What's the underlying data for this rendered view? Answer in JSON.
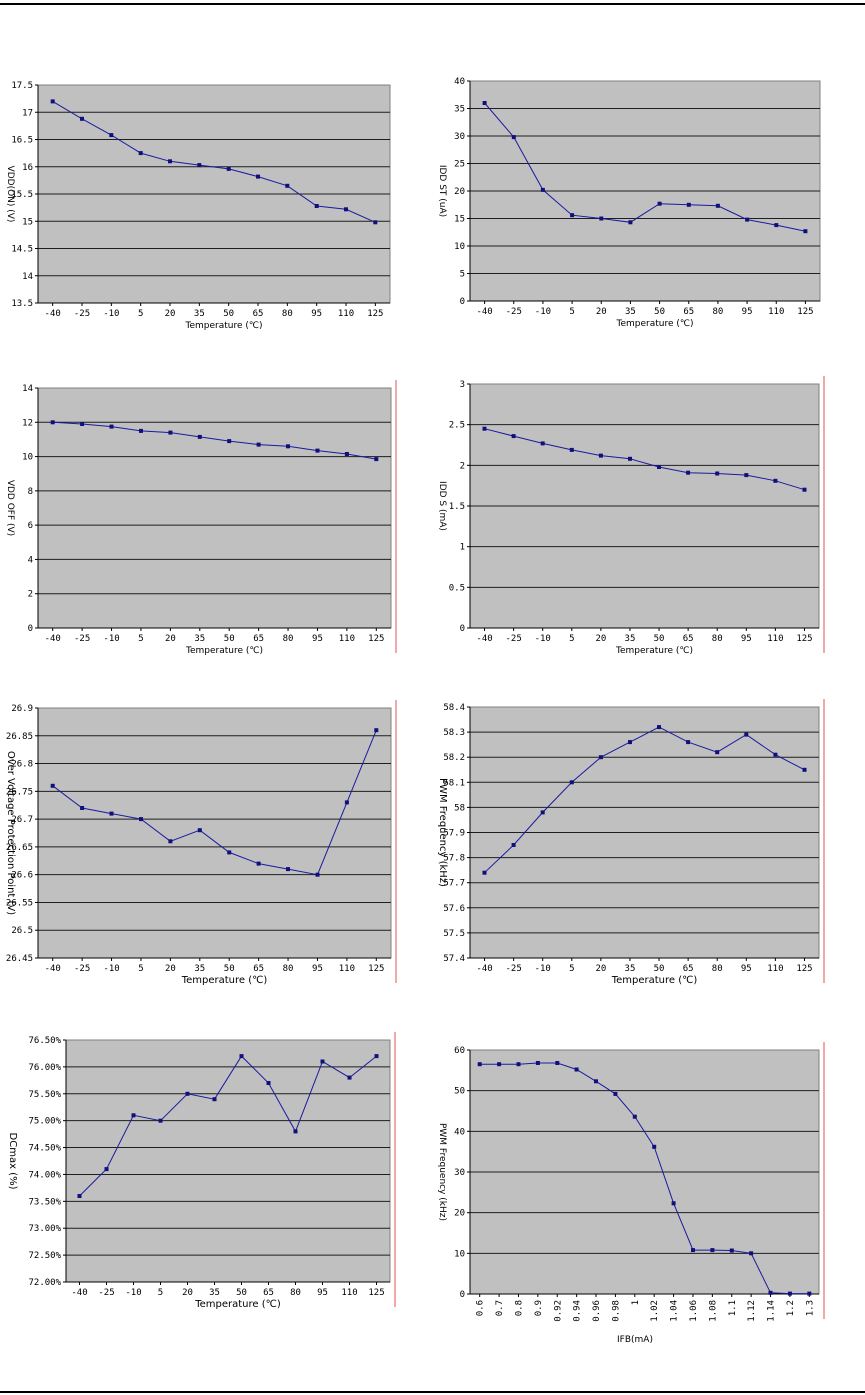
{
  "chart_data": [
    {
      "type": "line",
      "ylabel": "VDD(ON) (V)",
      "xlabel": "Temperature (℃)",
      "categories": [
        "-40",
        "-25",
        "-10",
        "5",
        "20",
        "35",
        "50",
        "65",
        "80",
        "95",
        "110",
        "125"
      ],
      "ylim": [
        13.5,
        17.5
      ],
      "yticks": [
        "13.5",
        "14",
        "14.5",
        "15",
        "15.5",
        "16",
        "16.5",
        "17",
        "17.5"
      ],
      "series": [
        {
          "values": [
            17.2,
            16.88,
            16.58,
            16.25,
            16.1,
            16.03,
            15.96,
            15.82,
            15.65,
            15.28,
            15.22,
            14.98
          ]
        }
      ],
      "grid": true
    },
    {
      "type": "line",
      "ylabel": "IDD ST (uA)",
      "xlabel": "Temperature (℃)",
      "categories": [
        "-40",
        "-25",
        "-10",
        "5",
        "20",
        "35",
        "50",
        "65",
        "80",
        "95",
        "110",
        "125"
      ],
      "ylim": [
        0,
        40
      ],
      "yticks": [
        "0",
        "5",
        "10",
        "15",
        "20",
        "25",
        "30",
        "35",
        "40"
      ],
      "series": [
        {
          "values": [
            36,
            29.8,
            20.2,
            15.6,
            15,
            14.3,
            17.7,
            17.5,
            17.3,
            14.8,
            13.8,
            12.7
          ]
        }
      ],
      "grid": true
    },
    {
      "type": "line",
      "ylabel": "VDD OFF (V)",
      "xlabel": "Temperature (℃)",
      "categories": [
        "-40",
        "-25",
        "-10",
        "5",
        "20",
        "35",
        "50",
        "65",
        "80",
        "95",
        "110",
        "125"
      ],
      "ylim": [
        0,
        14
      ],
      "yticks": [
        "0",
        "2",
        "4",
        "6",
        "8",
        "10",
        "12",
        "14"
      ],
      "series": [
        {
          "values": [
            12,
            11.9,
            11.75,
            11.5,
            11.4,
            11.15,
            10.9,
            10.7,
            10.6,
            10.35,
            10.15,
            9.85
          ]
        }
      ],
      "grid": true
    },
    {
      "type": "line",
      "ylabel": "IDD S (mA)",
      "xlabel": "Temperature (℃)",
      "categories": [
        "-40",
        "-25",
        "-10",
        "5",
        "20",
        "35",
        "50",
        "65",
        "80",
        "95",
        "110",
        "125"
      ],
      "ylim": [
        0,
        3
      ],
      "yticks": [
        "0",
        "0.5",
        "1",
        "1.5",
        "2",
        "2.5",
        "3"
      ],
      "series": [
        {
          "values": [
            2.45,
            2.36,
            2.27,
            2.19,
            2.12,
            2.08,
            1.98,
            1.91,
            1.9,
            1.88,
            1.81,
            1.7
          ]
        }
      ],
      "grid": true
    },
    {
      "type": "line",
      "ylabel": "Over Voltage Protection Point (V)",
      "xlabel": "Temperature (℃)",
      "categories": [
        "-40",
        "-25",
        "-10",
        "5",
        "20",
        "35",
        "50",
        "65",
        "80",
        "95",
        "110",
        "125"
      ],
      "ylim": [
        26.45,
        26.9
      ],
      "yticks": [
        "26.45",
        "26.5",
        "26.55",
        "26.6",
        "26.65",
        "26.7",
        "26.75",
        "26.8",
        "26.85",
        "26.9"
      ],
      "series": [
        {
          "values": [
            26.76,
            26.72,
            26.71,
            26.7,
            26.66,
            26.68,
            26.64,
            26.62,
            26.61,
            26.6,
            26.73,
            26.86
          ]
        }
      ],
      "grid": true
    },
    {
      "type": "line",
      "ylabel": "PWM Frequency (kHz)",
      "xlabel": "Temperature (℃)",
      "categories": [
        "-40",
        "-25",
        "-10",
        "5",
        "20",
        "35",
        "50",
        "65",
        "80",
        "95",
        "110",
        "125"
      ],
      "ylim": [
        57.4,
        58.4
      ],
      "yticks": [
        "57.4",
        "57.5",
        "57.6",
        "57.7",
        "57.8",
        "57.9",
        "58",
        "58.1",
        "58.2",
        "58.3",
        "58.4"
      ],
      "series": [
        {
          "values": [
            57.74,
            57.85,
            57.98,
            58.1,
            58.2,
            58.26,
            58.32,
            58.26,
            58.22,
            58.29,
            58.21,
            58.15
          ]
        }
      ],
      "grid": true
    },
    {
      "type": "line",
      "ylabel": "DCmax (%)",
      "xlabel": "Temperature (℃)",
      "categories": [
        "-40",
        "-25",
        "-10",
        "5",
        "20",
        "35",
        "50",
        "65",
        "80",
        "95",
        "110",
        "125"
      ],
      "ylim": [
        72,
        76.5
      ],
      "yticks": [
        "72.00%",
        "72.50%",
        "73.00%",
        "73.50%",
        "74.00%",
        "74.50%",
        "75.00%",
        "75.50%",
        "76.00%",
        "76.50%"
      ],
      "series": [
        {
          "values": [
            73.6,
            74.1,
            75.1,
            75,
            75.5,
            75.4,
            76.2,
            75.7,
            74.8,
            76.1,
            75.8,
            76.2
          ]
        }
      ],
      "grid": true
    },
    {
      "type": "line",
      "ylabel": "PWM Frequency (kHz)",
      "xlabel": "IFB(mA)",
      "categories": [
        "0.6",
        "0.7",
        "0.8",
        "0.9",
        "0.92",
        "0.94",
        "0.96",
        "0.98",
        "1",
        "1.02",
        "1.04",
        "1.06",
        "1.08",
        "1.1",
        "1.12",
        "1.14",
        "1.2",
        "1.3"
      ],
      "ylim": [
        0,
        60
      ],
      "yticks": [
        "0",
        "10",
        "20",
        "30",
        "40",
        "50",
        "60"
      ],
      "series": [
        {
          "values": [
            56.5,
            56.5,
            56.5,
            56.8,
            56.8,
            55.2,
            52.3,
            49.2,
            43.6,
            36.2,
            22.3,
            10.8,
            10.8,
            10.7,
            10,
            0.3,
            0.1,
            0.1
          ]
        }
      ],
      "grid": true
    }
  ]
}
